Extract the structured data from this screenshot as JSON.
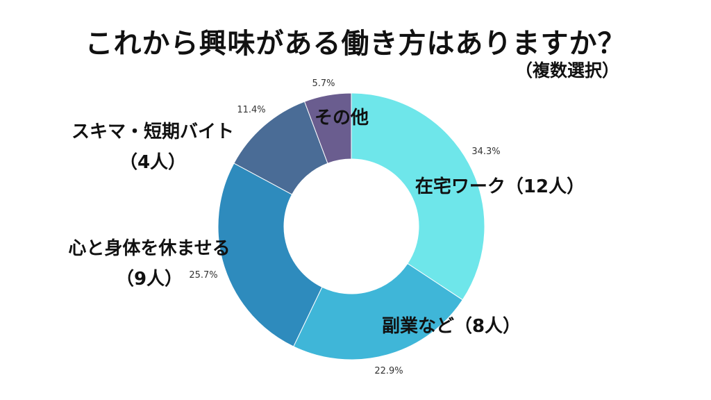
{
  "title": "これから興味がある働き方はありますか？",
  "subtitle": "（複数選択）",
  "chart_data": {
    "type": "pie",
    "donut": true,
    "title": "これから興味がある働き方はありますか？",
    "subtitle": "（複数選択）",
    "categories": [
      "在宅ワーク",
      "副業など",
      "心と身体を休ませる",
      "スキマ・短期バイト",
      "その他"
    ],
    "values": [
      12,
      8,
      9,
      4,
      2
    ],
    "percent_labels": [
      "34.3%",
      "22.9%",
      "25.7%",
      "11.4%",
      "5.7%"
    ],
    "category_labels": [
      [
        "在宅ワーク（12人）"
      ],
      [
        "副業など（8人）"
      ],
      [
        "心と身体を休ませる",
        "（9人）"
      ],
      [
        "スキマ・短期バイト",
        "（4人）"
      ],
      [
        "その他"
      ]
    ],
    "colors": [
      "#6ee6ea",
      "#3fb6d8",
      "#2e8bbd",
      "#4a6c96",
      "#6a5d8f"
    ]
  }
}
